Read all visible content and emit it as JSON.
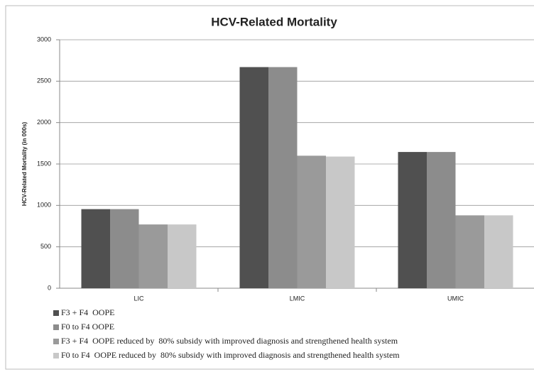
{
  "chart_data": {
    "type": "bar",
    "title": "HCV-Related Mortality",
    "y_label": "HCV-Related Mortality (in 000s)",
    "categories": [
      "LIC",
      "LMIC",
      "UMIC"
    ],
    "series": [
      {
        "name": "F3 + F4  OOPE",
        "color": "#505050",
        "values": [
          955,
          2670,
          1645
        ]
      },
      {
        "name": "F0 to F4 OOPE",
        "color": "#8c8c8c",
        "values": [
          955,
          2670,
          1645
        ]
      },
      {
        "name": "F3 + F4  OOPE reduced by  80% subsidy with improved diagnosis and strengthened health system",
        "color": "#9a9a9a",
        "values": [
          770,
          1600,
          880
        ]
      },
      {
        "name": "F0 to F4  OOPE reduced by  80% subsidy with improved diagnosis and strengthened health system",
        "color": "#c8c8c8",
        "values": [
          770,
          1590,
          880
        ]
      }
    ],
    "ylim": [
      0,
      3000
    ],
    "yticks": [
      0,
      500,
      1000,
      1500,
      2000,
      2500,
      3000
    ],
    "grid": true
  }
}
